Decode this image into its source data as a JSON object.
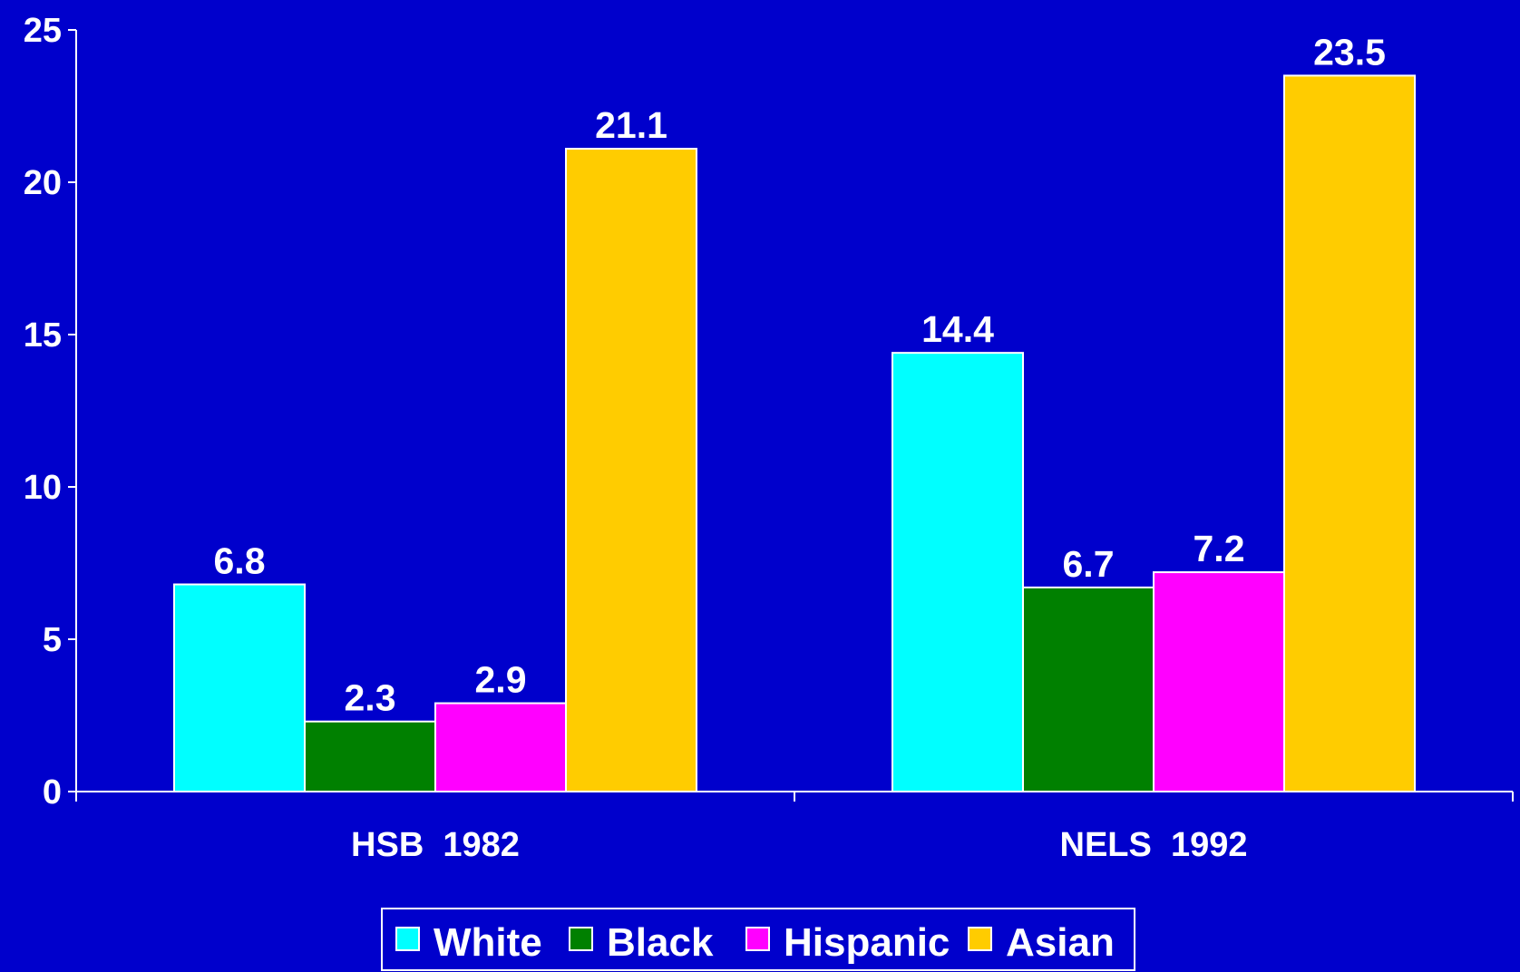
{
  "chart_data": {
    "type": "bar",
    "categories": [
      "HSB  1982",
      "NELS  1992"
    ],
    "series": [
      {
        "name": "White",
        "color": "#00FFFF",
        "values": [
          6.8,
          14.4
        ]
      },
      {
        "name": "Black",
        "color": "#008000",
        "values": [
          2.3,
          6.7
        ]
      },
      {
        "name": "Hispanic",
        "color": "#FF00FF",
        "values": [
          2.9,
          7.2
        ]
      },
      {
        "name": "Asian",
        "color": "#FFCC00",
        "values": [
          21.1,
          23.5
        ]
      }
    ],
    "data_labels": [
      [
        "6.8",
        "14.4"
      ],
      [
        "2.3",
        "6.7"
      ],
      [
        "2.9",
        "7.2"
      ],
      [
        "21.1",
        "23.5"
      ]
    ],
    "y_ticks": [
      {
        "value": 0,
        "label": "0"
      },
      {
        "value": 5,
        "label": "5"
      },
      {
        "value": 10,
        "label": "10"
      },
      {
        "value": 15,
        "label": "15"
      },
      {
        "value": 20,
        "label": "20"
      },
      {
        "value": 25,
        "label": "25"
      }
    ],
    "ylim": [
      0,
      25
    ],
    "title": "",
    "xlabel": "",
    "ylabel": "",
    "grid": false,
    "legend_position": "bottom-center",
    "background_color": "#0000CC",
    "axis_color": "#FFFFFF"
  }
}
